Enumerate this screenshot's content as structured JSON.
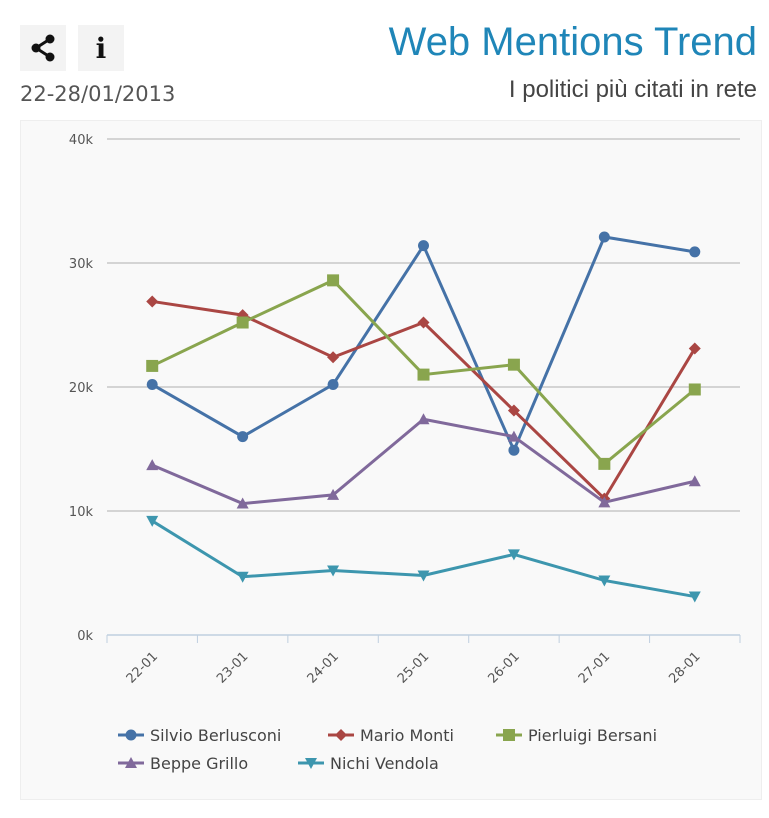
{
  "header": {
    "title": "Web Mentions Trend",
    "subtitle": "I politici più citati in rete",
    "date_range": "22-28/01/2013",
    "share_icon": "share-icon",
    "info_icon": "info-icon"
  },
  "chart_data": {
    "type": "line",
    "title": "Web Mentions Trend",
    "subtitle": "I politici più citati in rete",
    "categories": [
      "22-01",
      "23-01",
      "24-01",
      "25-01",
      "26-01",
      "27-01",
      "28-01"
    ],
    "ylim": [
      0,
      40000
    ],
    "yticks": [
      {
        "v": 0,
        "label": "0k"
      },
      {
        "v": 10000,
        "label": "10k"
      },
      {
        "v": 20000,
        "label": "20k"
      },
      {
        "v": 30000,
        "label": "30k"
      },
      {
        "v": 40000,
        "label": "40k"
      }
    ],
    "grid": true,
    "legend": "bottom",
    "series": [
      {
        "name": "Silvio Berlusconi",
        "color": "#4572a7",
        "marker": "circle",
        "values": [
          20200,
          16000,
          20200,
          31400,
          14900,
          32100,
          30900
        ]
      },
      {
        "name": "Mario Monti",
        "color": "#aa4643",
        "marker": "diamond",
        "values": [
          26900,
          25800,
          22400,
          25200,
          18100,
          11000,
          23100
        ]
      },
      {
        "name": "Pierluigi Bersani",
        "color": "#89a54e",
        "marker": "square",
        "values": [
          21700,
          25200,
          28600,
          21000,
          21800,
          13800,
          19800
        ]
      },
      {
        "name": "Beppe Grillo",
        "color": "#80699b",
        "marker": "triangle",
        "values": [
          13700,
          10600,
          11300,
          17400,
          16000,
          10700,
          12400
        ]
      },
      {
        "name": "Nichi Vendola",
        "color": "#3d96ae",
        "marker": "triangle-down",
        "values": [
          9200,
          4700,
          5200,
          4800,
          6500,
          4400,
          3100
        ]
      }
    ]
  }
}
